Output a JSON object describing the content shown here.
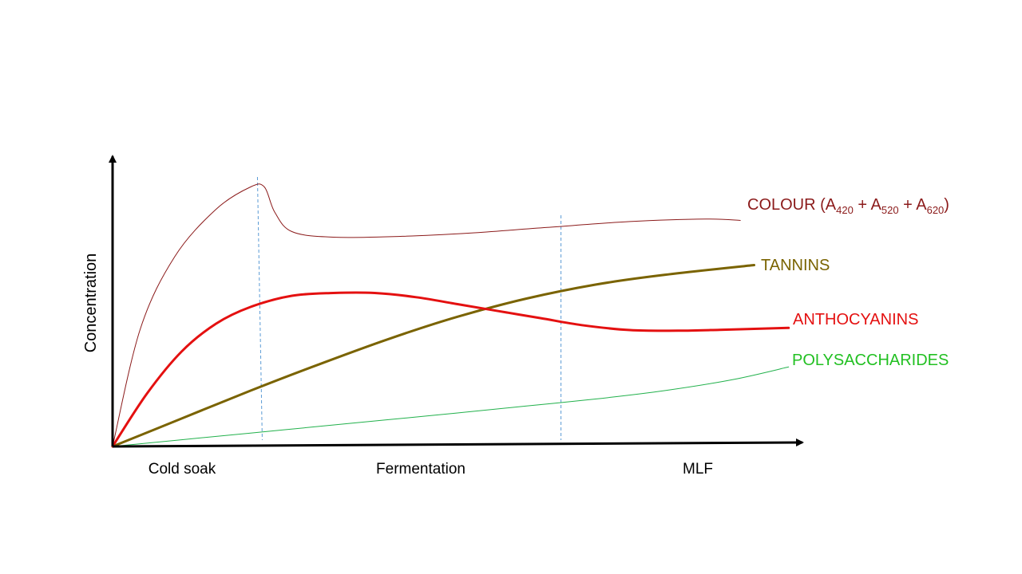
{
  "chart_data": {
    "type": "line",
    "title": "",
    "xlabel": "",
    "ylabel": "Concentration",
    "phases": [
      "Cold soak",
      "Fermentation",
      "MLF"
    ],
    "x_range": [
      0,
      10
    ],
    "y_range": [
      0,
      100
    ],
    "phase_boundaries": [
      2.1,
      6.5
    ],
    "grid": false,
    "legend": "inline-right",
    "series": [
      {
        "name": "COLOUR",
        "label_prefix": "COLOUR (A",
        "label_parts": [
          {
            "sub": "420"
          },
          {
            "text": " + A"
          },
          {
            "sub": "520"
          },
          {
            "text": " + A"
          },
          {
            "sub": "620"
          },
          {
            "text": ")"
          }
        ],
        "color": "#8b1a1a",
        "width": 1,
        "x": [
          0,
          0.4,
          0.9,
          1.5,
          2.0,
          2.2,
          2.35,
          2.6,
          3.2,
          4.2,
          5.2,
          6.3,
          7.5,
          8.6,
          9.1
        ],
        "y": [
          0,
          42,
          68,
          85,
          93,
          93,
          84,
          77,
          75,
          75.3,
          76.5,
          78.5,
          80.6,
          81.5,
          81
        ]
      },
      {
        "name": "TANNINS",
        "label": "TANNINS",
        "color": "#7a6300",
        "width": 3,
        "x": [
          0,
          1,
          2,
          3,
          4,
          5,
          6,
          7,
          8,
          9.3
        ],
        "y": [
          0,
          10,
          20,
          29.5,
          38.5,
          46.5,
          53,
          58,
          61.5,
          65
        ]
      },
      {
        "name": "ANTHOCYANINS",
        "label": "ANTHOCYANINS",
        "color": "#e41010",
        "width": 3,
        "x": [
          0,
          0.5,
          1,
          1.5,
          2,
          2.6,
          3.2,
          3.8,
          4.4,
          5,
          5.6,
          6.2,
          6.8,
          7.5,
          8.2,
          8.8,
          9.8
        ],
        "y": [
          0,
          19,
          34,
          44,
          50,
          54,
          55,
          55,
          53.5,
          51,
          48.5,
          46,
          43.5,
          41.7,
          41.5,
          41.8,
          42.5
        ]
      },
      {
        "name": "POLYSACCHARIDES",
        "label": "POLYSACCHARIDES",
        "color": "#22b14c",
        "width": 1,
        "x": [
          0,
          1,
          2,
          3,
          4,
          5,
          6,
          7,
          8,
          9,
          9.8
        ],
        "y": [
          0,
          2.4,
          4.8,
          7.2,
          9.6,
          12,
          14.5,
          17,
          20,
          24,
          28.5
        ]
      }
    ]
  }
}
